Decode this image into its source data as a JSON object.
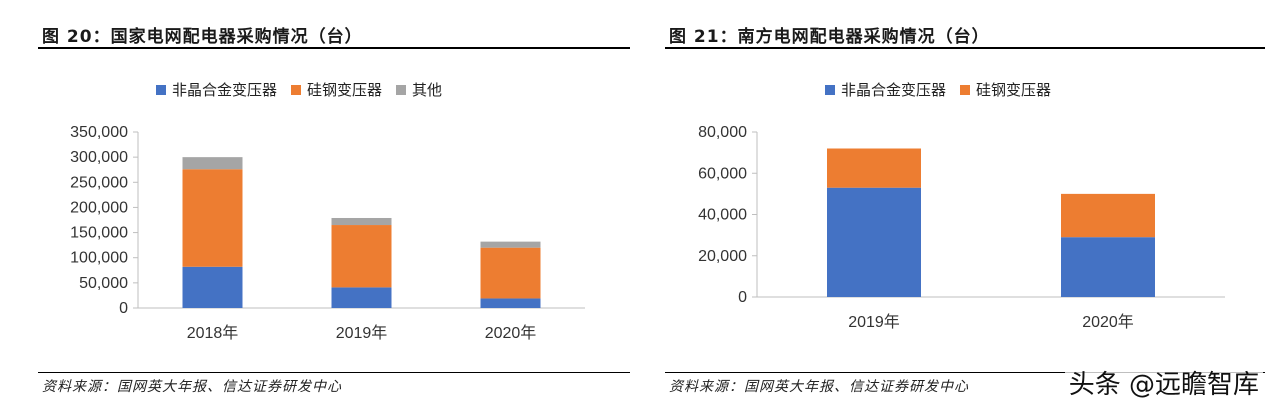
{
  "watermark": "头条 @远瞻智库",
  "left": {
    "title": "图 20：国家电网配电器采购情况（台）",
    "source": "资料来源：国网英大年报、信达证券研发中心",
    "chart_data": {
      "type": "bar",
      "stacked": true,
      "categories": [
        "2018年",
        "2019年",
        "2020年"
      ],
      "series": [
        {
          "name": "非晶合金变压器",
          "color": "#4472C4",
          "values": [
            82000,
            41000,
            19000
          ]
        },
        {
          "name": "硅钢变压器",
          "color": "#ED7D31",
          "values": [
            194000,
            124000,
            101000
          ]
        },
        {
          "name": "其他",
          "color": "#A5A5A5",
          "values": [
            24000,
            14000,
            12000
          ]
        }
      ],
      "ylim": [
        0,
        350000
      ],
      "yticks": [
        "0",
        "50,000",
        "100,000",
        "150,000",
        "200,000",
        "250,000",
        "300,000",
        "350,000"
      ],
      "ytick_values": [
        0,
        50000,
        100000,
        150000,
        200000,
        250000,
        300000,
        350000
      ],
      "legend_position": "top",
      "grid": false
    }
  },
  "right": {
    "title": "图 21：南方电网配电器采购情况（台）",
    "source": "资料来源：国网英大年报、信达证券研发中心",
    "chart_data": {
      "type": "bar",
      "stacked": true,
      "categories": [
        "2019年",
        "2020年"
      ],
      "series": [
        {
          "name": "非晶合金变压器",
          "color": "#4472C4",
          "values": [
            53000,
            29000
          ]
        },
        {
          "name": "硅钢变压器",
          "color": "#ED7D31",
          "values": [
            19000,
            21000
          ]
        }
      ],
      "ylim": [
        0,
        80000
      ],
      "yticks": [
        "0",
        "20,000",
        "40,000",
        "60,000",
        "80,000"
      ],
      "ytick_values": [
        0,
        20000,
        40000,
        60000,
        80000
      ],
      "legend_position": "top",
      "grid": false
    }
  }
}
